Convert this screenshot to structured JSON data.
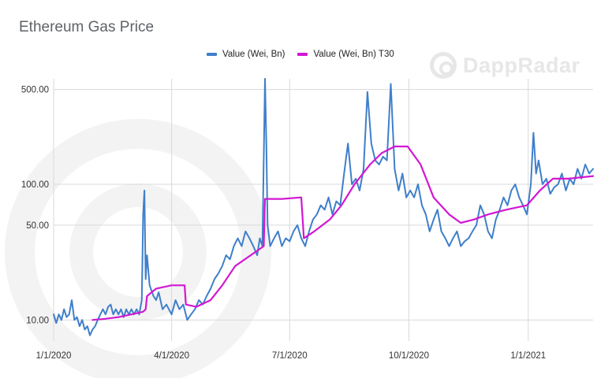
{
  "watermark": {
    "text": "DappRadar",
    "icon": "dappradar-logo-icon"
  },
  "chart_data": {
    "type": "line",
    "title": "Ethereum Gas Price",
    "xlabel": "",
    "ylabel": "",
    "y_scale": "log",
    "ylim": [
      7,
      600
    ],
    "xlim": [
      "2020-01-01",
      "2021-02-20"
    ],
    "grid": true,
    "legend_position": "top",
    "y_ticks": [
      {
        "value": 10,
        "label": "10.00"
      },
      {
        "value": 50,
        "label": "50.00"
      },
      {
        "value": 100,
        "label": "100.00"
      },
      {
        "value": 500,
        "label": "500.00"
      }
    ],
    "x_ticks": [
      {
        "value": "2020-01-01",
        "label": "1/1/2020"
      },
      {
        "value": "2020-04-01",
        "label": "4/1/2020"
      },
      {
        "value": "2020-07-01",
        "label": "7/1/2020"
      },
      {
        "value": "2020-10-01",
        "label": "10/1/2020"
      },
      {
        "value": "2021-01-01",
        "label": "1/1/2021"
      }
    ],
    "series": [
      {
        "name": "Value (Wei, Bn)",
        "color": "#3f7fca",
        "points": [
          [
            "2020-01-01",
            11
          ],
          [
            "2020-01-03",
            9.5
          ],
          [
            "2020-01-05",
            11
          ],
          [
            "2020-01-07",
            10
          ],
          [
            "2020-01-09",
            12
          ],
          [
            "2020-01-11",
            10.5
          ],
          [
            "2020-01-13",
            11
          ],
          [
            "2020-01-15",
            14
          ],
          [
            "2020-01-17",
            10
          ],
          [
            "2020-01-19",
            10.5
          ],
          [
            "2020-01-21",
            9
          ],
          [
            "2020-01-23",
            10
          ],
          [
            "2020-01-25",
            8.5
          ],
          [
            "2020-01-27",
            9
          ],
          [
            "2020-01-29",
            7.7
          ],
          [
            "2020-01-31",
            8.5
          ],
          [
            "2020-02-02",
            9
          ],
          [
            "2020-02-04",
            10
          ],
          [
            "2020-02-06",
            11
          ],
          [
            "2020-02-08",
            12
          ],
          [
            "2020-02-10",
            11
          ],
          [
            "2020-02-12",
            12.5
          ],
          [
            "2020-02-14",
            13
          ],
          [
            "2020-02-16",
            11
          ],
          [
            "2020-02-18",
            12
          ],
          [
            "2020-02-20",
            11
          ],
          [
            "2020-02-22",
            12
          ],
          [
            "2020-02-24",
            10.5
          ],
          [
            "2020-02-26",
            12
          ],
          [
            "2020-02-28",
            11
          ],
          [
            "2020-03-01",
            12
          ],
          [
            "2020-03-03",
            11
          ],
          [
            "2020-03-05",
            12
          ],
          [
            "2020-03-07",
            11
          ],
          [
            "2020-03-09",
            14
          ],
          [
            "2020-03-10",
            60
          ],
          [
            "2020-03-11",
            90
          ],
          [
            "2020-03-12",
            20
          ],
          [
            "2020-03-13",
            30
          ],
          [
            "2020-03-15",
            18
          ],
          [
            "2020-03-18",
            15
          ],
          [
            "2020-03-20",
            14
          ],
          [
            "2020-03-22",
            16
          ],
          [
            "2020-03-25",
            12
          ],
          [
            "2020-03-28",
            13
          ],
          [
            "2020-04-01",
            11
          ],
          [
            "2020-04-04",
            14
          ],
          [
            "2020-04-07",
            12
          ],
          [
            "2020-04-10",
            13
          ],
          [
            "2020-04-13",
            10
          ],
          [
            "2020-04-16",
            11
          ],
          [
            "2020-04-19",
            12
          ],
          [
            "2020-04-22",
            14
          ],
          [
            "2020-04-25",
            13
          ],
          [
            "2020-04-28",
            15
          ],
          [
            "2020-05-01",
            17
          ],
          [
            "2020-05-04",
            20
          ],
          [
            "2020-05-07",
            22
          ],
          [
            "2020-05-10",
            25
          ],
          [
            "2020-05-13",
            30
          ],
          [
            "2020-05-16",
            28
          ],
          [
            "2020-05-19",
            35
          ],
          [
            "2020-05-22",
            40
          ],
          [
            "2020-05-25",
            35
          ],
          [
            "2020-05-28",
            45
          ],
          [
            "2020-05-31",
            40
          ],
          [
            "2020-06-03",
            35
          ],
          [
            "2020-06-06",
            30
          ],
          [
            "2020-06-08",
            40
          ],
          [
            "2020-06-10",
            35
          ],
          [
            "2020-06-12",
            650
          ],
          [
            "2020-06-13",
            200
          ],
          [
            "2020-06-14",
            50
          ],
          [
            "2020-06-16",
            35
          ],
          [
            "2020-06-19",
            40
          ],
          [
            "2020-06-22",
            45
          ],
          [
            "2020-06-25",
            35
          ],
          [
            "2020-06-28",
            40
          ],
          [
            "2020-07-01",
            38
          ],
          [
            "2020-07-04",
            45
          ],
          [
            "2020-07-07",
            50
          ],
          [
            "2020-07-10",
            40
          ],
          [
            "2020-07-13",
            35
          ],
          [
            "2020-07-16",
            45
          ],
          [
            "2020-07-19",
            55
          ],
          [
            "2020-07-22",
            60
          ],
          [
            "2020-07-25",
            70
          ],
          [
            "2020-07-28",
            65
          ],
          [
            "2020-07-31",
            80
          ],
          [
            "2020-08-03",
            60
          ],
          [
            "2020-08-06",
            75
          ],
          [
            "2020-08-09",
            70
          ],
          [
            "2020-08-12",
            120
          ],
          [
            "2020-08-15",
            200
          ],
          [
            "2020-08-18",
            100
          ],
          [
            "2020-08-21",
            110
          ],
          [
            "2020-08-24",
            90
          ],
          [
            "2020-08-27",
            130
          ],
          [
            "2020-08-30",
            480
          ],
          [
            "2020-09-02",
            200
          ],
          [
            "2020-09-05",
            150
          ],
          [
            "2020-09-08",
            140
          ],
          [
            "2020-09-11",
            160
          ],
          [
            "2020-09-14",
            150
          ],
          [
            "2020-09-17",
            550
          ],
          [
            "2020-09-20",
            130
          ],
          [
            "2020-09-23",
            90
          ],
          [
            "2020-09-26",
            120
          ],
          [
            "2020-09-29",
            80
          ],
          [
            "2020-10-02",
            90
          ],
          [
            "2020-10-05",
            80
          ],
          [
            "2020-10-08",
            100
          ],
          [
            "2020-10-11",
            70
          ],
          [
            "2020-10-14",
            60
          ],
          [
            "2020-10-17",
            45
          ],
          [
            "2020-10-20",
            55
          ],
          [
            "2020-10-23",
            65
          ],
          [
            "2020-10-26",
            45
          ],
          [
            "2020-10-29",
            40
          ],
          [
            "2020-11-01",
            35
          ],
          [
            "2020-11-04",
            40
          ],
          [
            "2020-11-07",
            45
          ],
          [
            "2020-11-10",
            35
          ],
          [
            "2020-11-13",
            38
          ],
          [
            "2020-11-16",
            40
          ],
          [
            "2020-11-19",
            45
          ],
          [
            "2020-11-22",
            50
          ],
          [
            "2020-11-25",
            70
          ],
          [
            "2020-11-28",
            60
          ],
          [
            "2020-12-01",
            45
          ],
          [
            "2020-12-04",
            40
          ],
          [
            "2020-12-07",
            55
          ],
          [
            "2020-12-10",
            65
          ],
          [
            "2020-12-13",
            80
          ],
          [
            "2020-12-16",
            70
          ],
          [
            "2020-12-19",
            90
          ],
          [
            "2020-12-22",
            100
          ],
          [
            "2020-12-25",
            80
          ],
          [
            "2020-12-28",
            70
          ],
          [
            "2020-12-31",
            60
          ],
          [
            "2021-01-03",
            100
          ],
          [
            "2021-01-05",
            240
          ],
          [
            "2021-01-07",
            120
          ],
          [
            "2021-01-09",
            150
          ],
          [
            "2021-01-12",
            100
          ],
          [
            "2021-01-15",
            110
          ],
          [
            "2021-01-18",
            85
          ],
          [
            "2021-01-21",
            95
          ],
          [
            "2021-01-24",
            100
          ],
          [
            "2021-01-27",
            120
          ],
          [
            "2021-01-30",
            90
          ],
          [
            "2021-02-02",
            110
          ],
          [
            "2021-02-05",
            100
          ],
          [
            "2021-02-08",
            130
          ],
          [
            "2021-02-11",
            110
          ],
          [
            "2021-02-14",
            140
          ],
          [
            "2021-02-17",
            120
          ],
          [
            "2021-02-20",
            130
          ]
        ]
      },
      {
        "name": "Value (Wei, Bn) T30",
        "color": "#d217d2",
        "points": [
          [
            "2020-01-31",
            10
          ],
          [
            "2020-02-10",
            10.2
          ],
          [
            "2020-02-20",
            10.5
          ],
          [
            "2020-03-01",
            11
          ],
          [
            "2020-03-10",
            11.5
          ],
          [
            "2020-03-12",
            12
          ],
          [
            "2020-03-13",
            15
          ],
          [
            "2020-03-20",
            17
          ],
          [
            "2020-04-01",
            18
          ],
          [
            "2020-04-11",
            18
          ],
          [
            "2020-04-12",
            13
          ],
          [
            "2020-04-20",
            12.5
          ],
          [
            "2020-05-01",
            14
          ],
          [
            "2020-05-10",
            18
          ],
          [
            "2020-05-20",
            25
          ],
          [
            "2020-06-01",
            30
          ],
          [
            "2020-06-11",
            35
          ],
          [
            "2020-06-12",
            78
          ],
          [
            "2020-06-25",
            78
          ],
          [
            "2020-07-10",
            80
          ],
          [
            "2020-07-12",
            40
          ],
          [
            "2020-07-20",
            45
          ],
          [
            "2020-08-01",
            55
          ],
          [
            "2020-08-10",
            70
          ],
          [
            "2020-08-20",
            100
          ],
          [
            "2020-09-01",
            140
          ],
          [
            "2020-09-10",
            170
          ],
          [
            "2020-09-20",
            190
          ],
          [
            "2020-09-30",
            190
          ],
          [
            "2020-10-10",
            140
          ],
          [
            "2020-10-20",
            80
          ],
          [
            "2020-11-01",
            60
          ],
          [
            "2020-11-10",
            52
          ],
          [
            "2020-11-20",
            55
          ],
          [
            "2020-12-01",
            60
          ],
          [
            "2020-12-15",
            65
          ],
          [
            "2020-12-31",
            70
          ],
          [
            "2021-01-10",
            90
          ],
          [
            "2021-01-20",
            110
          ],
          [
            "2021-02-01",
            110
          ],
          [
            "2021-02-20",
            115
          ]
        ]
      }
    ]
  }
}
